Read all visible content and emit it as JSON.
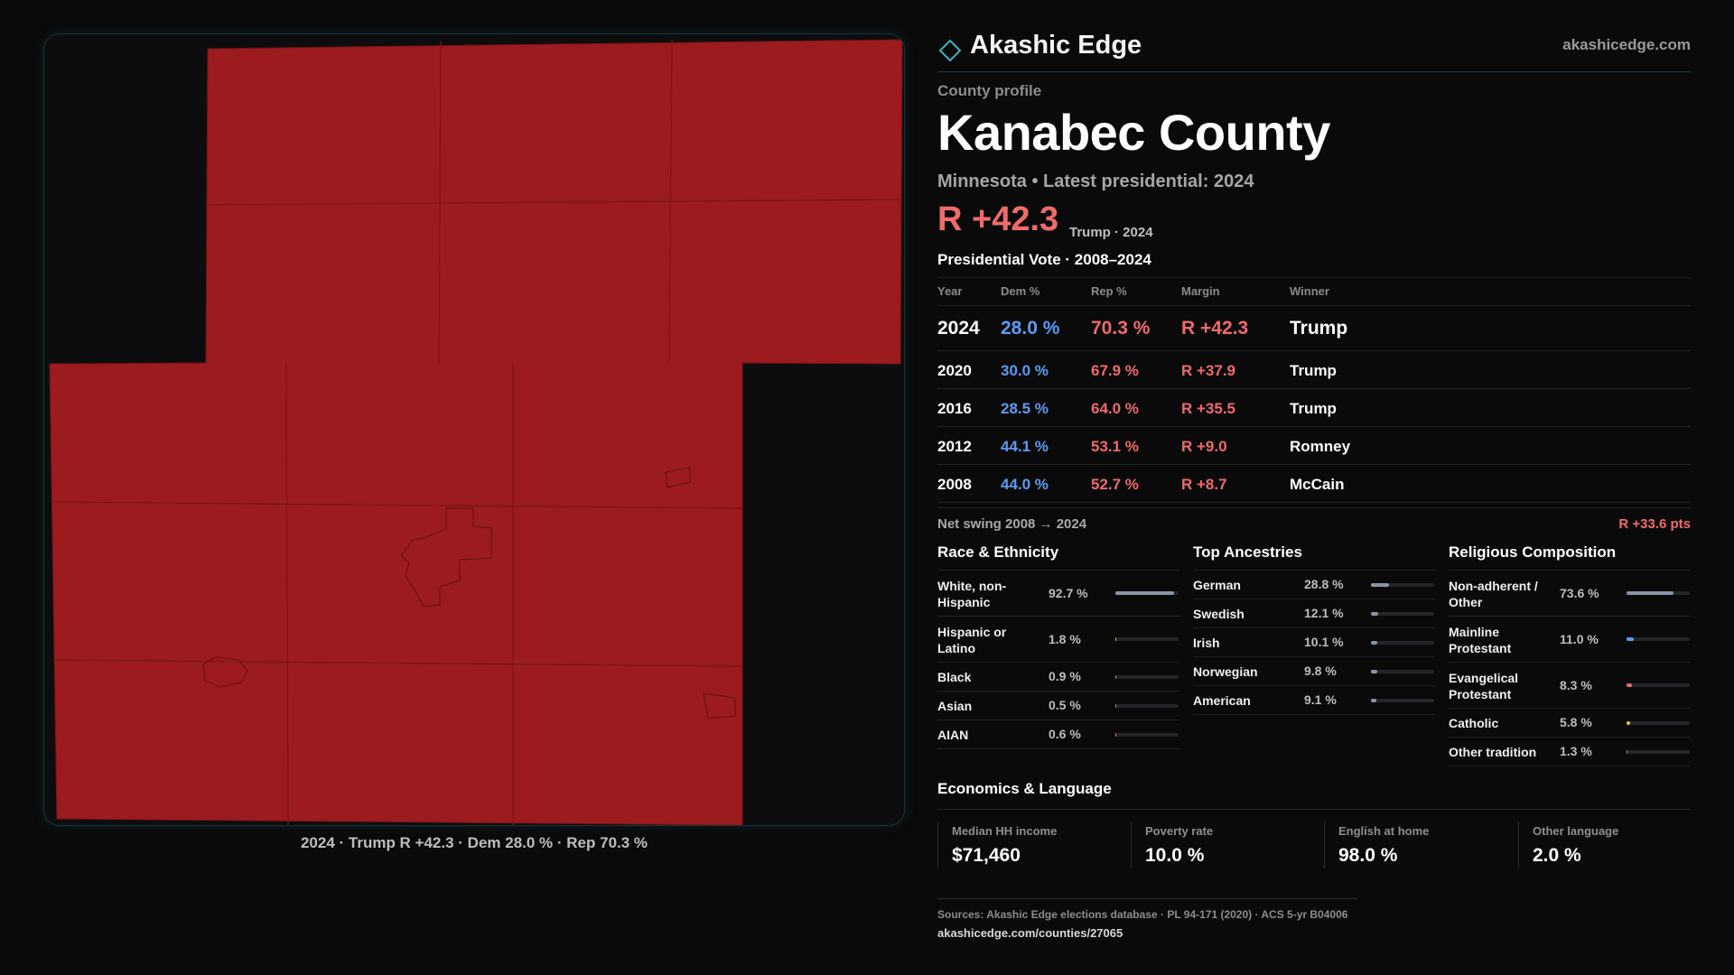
{
  "brand": {
    "name": "Akashic Edge",
    "url": "akashicedge.com"
  },
  "profile": {
    "eyebrow": "County profile",
    "title": "Kanabec County",
    "subtitle": "Minnesota • Latest presidential: 2024",
    "margin": "R +42.3",
    "margin_note": "Trump · 2024"
  },
  "map": {
    "caption": "2024 · Trump R +42.3 · Dem 28.0 % · Rep 70.3 %",
    "fill_color": "#9b1b1e"
  },
  "presidential": {
    "title": "Presidential Vote · 2008–2024",
    "headers": {
      "year": "Year",
      "dem": "Dem %",
      "rep": "Rep %",
      "margin": "Margin",
      "winner": "Winner"
    },
    "rows": [
      {
        "year": "2024",
        "dem": "28.0 %",
        "rep": "70.3 %",
        "margin": "R +42.3",
        "winner": "Trump"
      },
      {
        "year": "2020",
        "dem": "30.0 %",
        "rep": "67.9 %",
        "margin": "R +37.9",
        "winner": "Trump"
      },
      {
        "year": "2016",
        "dem": "28.5 %",
        "rep": "64.0 %",
        "margin": "R +35.5",
        "winner": "Trump"
      },
      {
        "year": "2012",
        "dem": "44.1 %",
        "rep": "53.1 %",
        "margin": "R +9.0",
        "winner": "Romney"
      },
      {
        "year": "2008",
        "dem": "44.0 %",
        "rep": "52.7 %",
        "margin": "R +8.7",
        "winner": "McCain"
      }
    ],
    "swing_label": "Net swing 2008 → 2024",
    "swing_value": "R +33.6 pts"
  },
  "race": {
    "title": "Race & Ethnicity",
    "rows": [
      {
        "label": "White, non-Hispanic",
        "value": "92.7 %",
        "pct": 92.7,
        "color": "#8b93a7"
      },
      {
        "label": "Hispanic or Latino",
        "value": "1.8 %",
        "pct": 1.8,
        "color": "#e0a23a"
      },
      {
        "label": "Black",
        "value": "0.9 %",
        "pct": 0.9,
        "color": "#8b93a7"
      },
      {
        "label": "Asian",
        "value": "0.5 %",
        "pct": 0.5,
        "color": "#4fb7a8"
      },
      {
        "label": "AIAN",
        "value": "0.6 %",
        "pct": 0.6,
        "color": "#e0813a"
      }
    ]
  },
  "ancestry": {
    "title": "Top Ancestries",
    "rows": [
      {
        "label": "German",
        "value": "28.8 %",
        "pct": 28.8,
        "color": "#8b93a7"
      },
      {
        "label": "Swedish",
        "value": "12.1 %",
        "pct": 12.1,
        "color": "#8b93a7"
      },
      {
        "label": "Irish",
        "value": "10.1 %",
        "pct": 10.1,
        "color": "#8b93a7"
      },
      {
        "label": "Norwegian",
        "value": "9.8 %",
        "pct": 9.8,
        "color": "#8b93a7"
      },
      {
        "label": "American",
        "value": "9.1 %",
        "pct": 9.1,
        "color": "#8b93a7"
      }
    ]
  },
  "religion": {
    "title": "Religious Composition",
    "rows": [
      {
        "label": "Non-adherent / Other",
        "value": "73.6 %",
        "pct": 73.6,
        "color": "#8b93a7"
      },
      {
        "label": "Mainline Protestant",
        "value": "11.0 %",
        "pct": 11.0,
        "color": "#5b9cf5"
      },
      {
        "label": "Evangelical Protestant",
        "value": "8.3 %",
        "pct": 8.3,
        "color": "#ef6b6b"
      },
      {
        "label": "Catholic",
        "value": "5.8 %",
        "pct": 5.8,
        "color": "#e8c24a"
      },
      {
        "label": "Other tradition",
        "value": "1.3 %",
        "pct": 1.3,
        "color": "#8b93a7"
      }
    ]
  },
  "economics": {
    "title": "Economics & Language",
    "items": [
      {
        "label": "Median HH income",
        "value": "$71,460"
      },
      {
        "label": "Poverty rate",
        "value": "10.0 %"
      },
      {
        "label": "English at home",
        "value": "98.0 %"
      },
      {
        "label": "Other language",
        "value": "2.0 %"
      }
    ]
  },
  "footer": {
    "sources": "Sources: Akashic Edge elections database · PL 94-171 (2020) · ACS 5-yr B04006",
    "url": "akashicedge.com/counties/27065"
  }
}
